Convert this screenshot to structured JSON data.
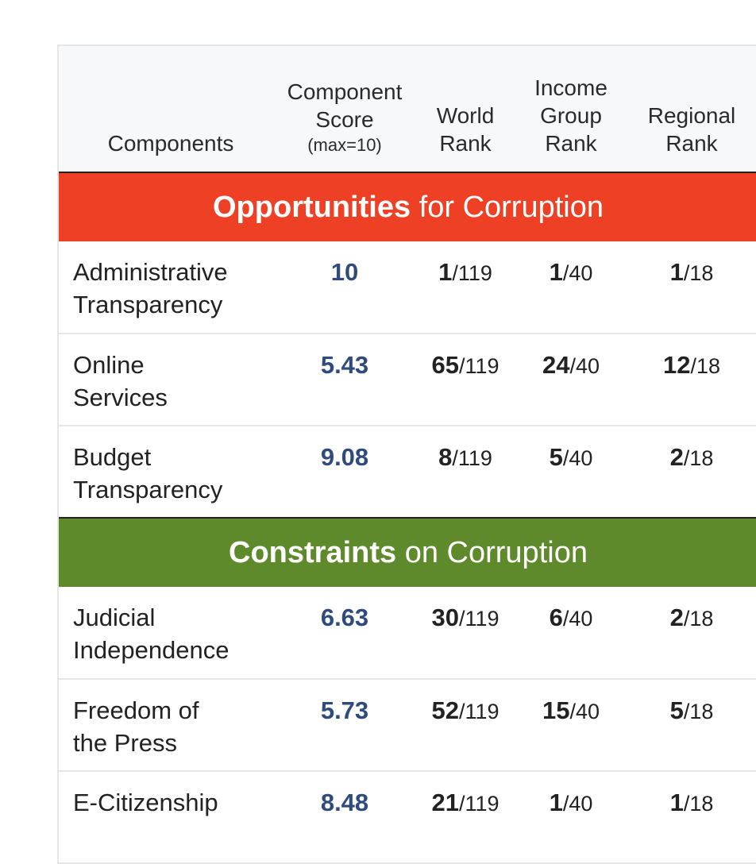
{
  "headers": {
    "components": "Components",
    "score_line1": "Component",
    "score_line2": "Score",
    "score_line3": "(max=10)",
    "world_line1": "World",
    "world_line2": "Rank",
    "income_line1": "Income",
    "income_line2": "Group",
    "income_line3": "Rank",
    "regional_line1": "Regional",
    "regional_line2": "Rank"
  },
  "sections": [
    {
      "title_bold": "Opportunities",
      "title_rest": " for Corruption",
      "color": "#ee4024",
      "rows": [
        {
          "line1": "Administrative",
          "line2": "Transparency",
          "score": "10",
          "world": "1",
          "world_den": "/119",
          "income": "1",
          "income_den": "/40",
          "regional": "1",
          "regional_den": "/18"
        },
        {
          "line1": "Online",
          "line2": "Services",
          "score": "5.43",
          "world": "65",
          "world_den": "/119",
          "income": "24",
          "income_den": "/40",
          "regional": "12",
          "regional_den": "/18"
        },
        {
          "line1": "Budget",
          "line2": "Transparency",
          "score": "9.08",
          "world": "8",
          "world_den": "/119",
          "income": "5",
          "income_den": "/40",
          "regional": "2",
          "regional_den": "/18"
        }
      ]
    },
    {
      "title_bold": "Constraints",
      "title_rest": " on Corruption",
      "color": "#5e8a2c",
      "rows": [
        {
          "line1": "Judicial",
          "line2": "Independence",
          "score": "6.63",
          "world": "30",
          "world_den": "/119",
          "income": "6",
          "income_den": "/40",
          "regional": "2",
          "regional_den": "/18"
        },
        {
          "line1": "Freedom of",
          "line2": "the Press",
          "score": "5.73",
          "world": "52",
          "world_den": "/119",
          "income": "15",
          "income_den": "/40",
          "regional": "5",
          "regional_den": "/18"
        },
        {
          "line1": "E-Citizenship",
          "line2": "",
          "score": "8.48",
          "world": "21",
          "world_den": "/119",
          "income": "1",
          "income_den": "/40",
          "regional": "1",
          "regional_den": "/18"
        }
      ]
    }
  ]
}
